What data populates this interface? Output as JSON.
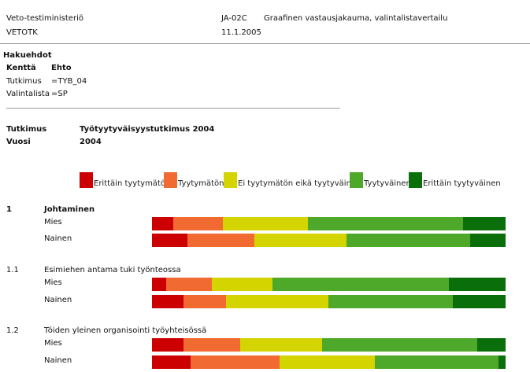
{
  "header": {
    "org": "Veto-testiministeriö",
    "unit": "VETOTK",
    "report_code": "JA-02C",
    "report_title": "Graafinen vastausjakauma, valintalistavertailu",
    "date": "11.1.2005"
  },
  "criteria": {
    "heading": "Hakuehdot",
    "col_field": "Kenttä",
    "col_condition": "Ehto",
    "rows": [
      {
        "field": "Tutkimus",
        "condition": "=TYB_04"
      },
      {
        "field": "Valintalista",
        "condition": "=SP"
      }
    ]
  },
  "study": {
    "label_study": "Tutkimus",
    "value_study": "Työtyytyväisyystutkimus 2004",
    "label_year": "Vuosi",
    "value_year": "2004"
  },
  "colors": {
    "very_dissatisfied": "#cc0000",
    "dissatisfied": "#f06a32",
    "neutral": "#d4d400",
    "satisfied": "#4ea82a",
    "very_satisfied": "#0a6e0a"
  },
  "chart_data": {
    "type": "bar",
    "stacked": true,
    "orientation": "horizontal",
    "normalized_percent": true,
    "legend": [
      {
        "label": "Erittäin tyytymätön",
        "color": "#cc0000"
      },
      {
        "label": "Tyytymätön",
        "color": "#f06a32"
      },
      {
        "label": "Ei tyytymätön eikä tyytyväinen",
        "color": "#d4d400"
      },
      {
        "label": "Tyytyväinen",
        "color": "#4ea82a"
      },
      {
        "label": "Erittäin tyytyväinen",
        "color": "#0a6e0a"
      }
    ],
    "groups": [
      {
        "number": "1",
        "title": "Johtaminen",
        "bold": true,
        "rows": [
          {
            "label": "Mies",
            "values": [
              6,
              14,
              24,
              44,
              12
            ]
          },
          {
            "label": "Nainen",
            "values": [
              10,
              19,
              26,
              35,
              10
            ]
          }
        ]
      },
      {
        "number": "1.1",
        "title": "Esimiehen antama tuki työnteossa",
        "bold": false,
        "rows": [
          {
            "label": "Mies",
            "values": [
              4,
              13,
              17,
              50,
              16
            ]
          },
          {
            "label": "Nainen",
            "values": [
              9,
              12,
              29,
              35,
              15
            ]
          }
        ]
      },
      {
        "number": "1.2",
        "title": "Töiden yleinen organisointi työyhteisössä",
        "bold": false,
        "rows": [
          {
            "label": "Mies",
            "values": [
              9,
              16,
              23,
              44,
              8
            ]
          },
          {
            "label": "Nainen",
            "values": [
              11,
              25,
              27,
              35,
              2
            ]
          }
        ]
      }
    ]
  }
}
